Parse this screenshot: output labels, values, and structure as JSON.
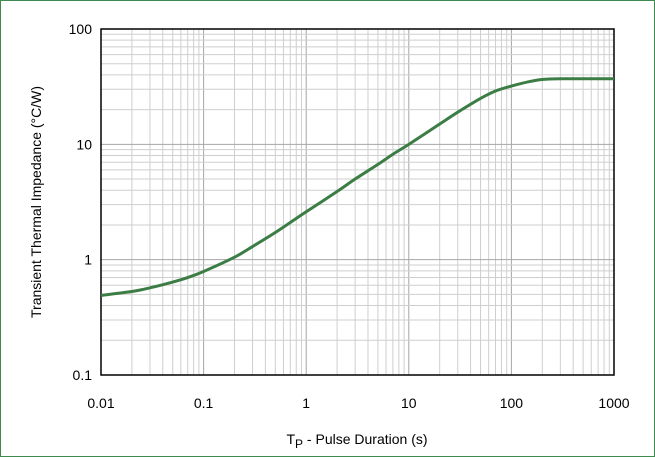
{
  "chart_data": {
    "type": "line",
    "title": "",
    "xlabel": {
      "main": "T",
      "sub": "P",
      "rest": " - Pulse Duration (s)"
    },
    "ylabel": "Transient Thermal Impedance (°C/W)",
    "xscale": "log",
    "yscale": "log",
    "xlim": [
      0.01,
      1000
    ],
    "ylim": [
      0.1,
      100
    ],
    "x_ticks": [
      "0.01",
      "0.1",
      "1",
      "10",
      "100",
      "1000"
    ],
    "y_ticks": [
      "0.1",
      "1",
      "10",
      "100"
    ],
    "grid": true,
    "series": [
      {
        "color": "#3b7d45",
        "x": [
          0.01,
          0.02,
          0.03,
          0.05,
          0.07,
          0.1,
          0.2,
          0.3,
          0.5,
          0.7,
          1,
          2,
          3,
          5,
          7,
          10,
          20,
          30,
          50,
          70,
          100,
          150,
          200,
          300,
          500,
          1000
        ],
        "y": [
          0.49,
          0.53,
          0.57,
          0.64,
          0.7,
          0.79,
          1.05,
          1.3,
          1.72,
          2.1,
          2.6,
          3.9,
          5.0,
          6.7,
          8.2,
          10,
          15,
          19,
          25,
          29,
          32,
          35,
          36.5,
          37,
          37,
          37
        ]
      }
    ]
  }
}
